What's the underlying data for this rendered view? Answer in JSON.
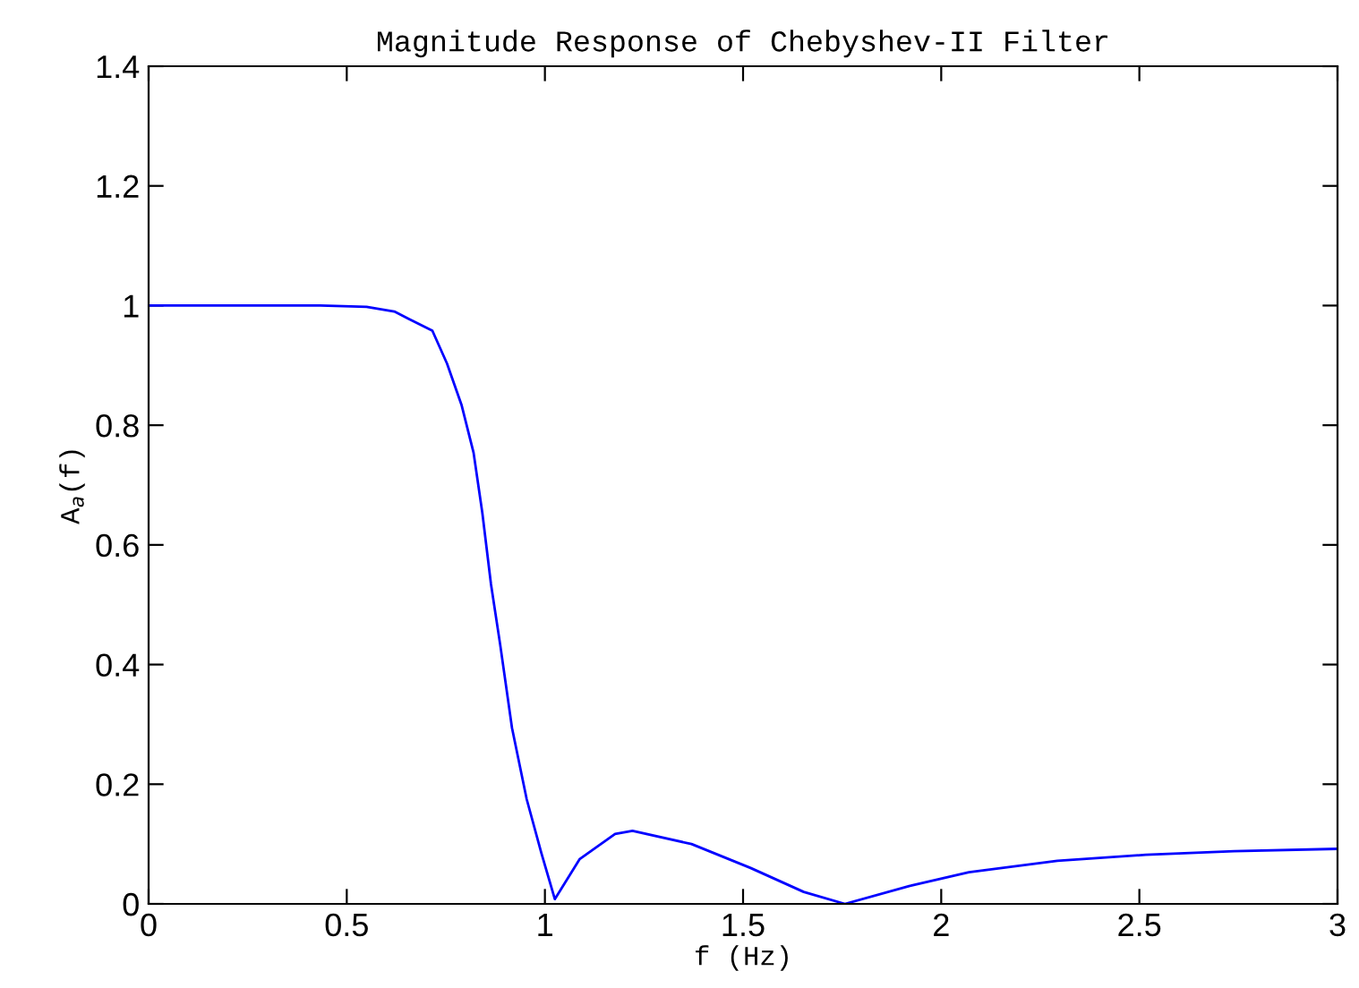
{
  "chart_data": {
    "type": "line",
    "title": "Magnitude Response of Chebyshev-II Filter",
    "xlabel": "f (Hz)",
    "ylabel": "A$_{a}$(f)",
    "series": [
      {
        "color": "#0000ff",
        "x": [
          0,
          0.2,
          0.433,
          0.55,
          0.62,
          0.656,
          0.716,
          0.753,
          0.79,
          0.82,
          0.842,
          0.864,
          0.887,
          0.917,
          0.954,
          0.991,
          1.025,
          1.088,
          1.177,
          1.221,
          1.37,
          1.519,
          1.653,
          1.757,
          1.921,
          2.07,
          2.293,
          2.516,
          2.739,
          3.0
        ],
        "values": [
          1.0,
          1.0,
          1.0,
          0.998,
          0.99,
          0.978,
          0.958,
          0.903,
          0.833,
          0.754,
          0.654,
          0.534,
          0.434,
          0.294,
          0.175,
          0.085,
          0.008,
          0.075,
          0.117,
          0.122,
          0.1,
          0.06,
          0.02,
          0.0,
          0.03,
          0.053,
          0.072,
          0.082,
          0.088,
          0.092
        ]
      }
    ],
    "xlim": [
      0,
      3
    ],
    "ylim": [
      0,
      1.4
    ],
    "xticks": [
      0,
      0.5,
      1,
      1.5,
      2,
      2.5,
      3
    ],
    "yticks": [
      0,
      0.2,
      0.4,
      0.6,
      0.8,
      1,
      1.2,
      1.4
    ],
    "grid": false,
    "marker": "none",
    "line_style": "solid"
  }
}
